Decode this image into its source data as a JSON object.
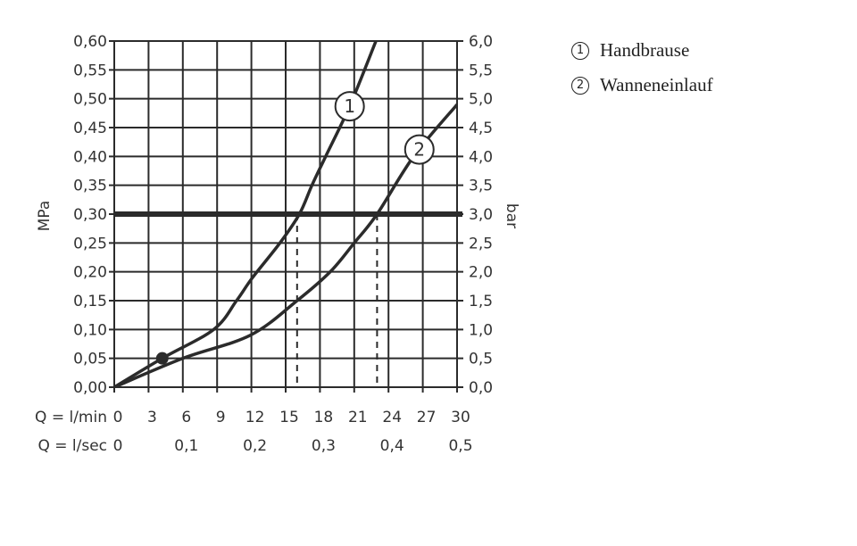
{
  "chart_data": {
    "type": "line",
    "xlabel_primary": "Q = l/min",
    "xlabel_secondary": "Q = l/sec",
    "ylabel_left": "MPa",
    "ylabel_right": "bar",
    "xlim": [
      0,
      30
    ],
    "ylim": [
      0,
      0.6
    ],
    "grid": true,
    "x_ticks": [
      "0",
      "3",
      "6",
      "9",
      "12",
      "15",
      "18",
      "21",
      "24",
      "27",
      "30"
    ],
    "x_ticks_values": [
      0,
      3,
      6,
      9,
      12,
      15,
      18,
      21,
      24,
      27,
      30
    ],
    "x2_ticks": [
      "0",
      "0,1",
      "0,2",
      "0,3",
      "0,4",
      "0,5"
    ],
    "x2_ticks_at_lmin": [
      0,
      6,
      12,
      18,
      24,
      30
    ],
    "y_left_ticks": [
      "0,00",
      "0,05",
      "0,10",
      "0,15",
      "0,20",
      "0,25",
      "0,30",
      "0,35",
      "0,40",
      "0,45",
      "0,50",
      "0,55",
      "0,60"
    ],
    "y_right_ticks": [
      "0,0",
      "0,5",
      "1,0",
      "1,5",
      "2,0",
      "2,5",
      "3,0",
      "3,5",
      "4,0",
      "4,5",
      "5,0",
      "5,5",
      "6,0"
    ],
    "reference_line_mpa": 0.3,
    "marker_point": {
      "x": 4.2,
      "y": 0.05
    },
    "series": [
      {
        "name": "1",
        "x": [
          0,
          4.2,
          8.7,
          10.7,
          12.1,
          14.5,
          16.2,
          17.3,
          18.5,
          20.6,
          22.9
        ],
        "y": [
          0,
          0.05,
          0.1,
          0.15,
          0.19,
          0.25,
          0.3,
          0.35,
          0.4,
          0.487,
          0.6
        ],
        "drop_line_x": 16.0,
        "label_at": {
          "x": 20.6,
          "y": 0.487
        }
      },
      {
        "name": "2",
        "x": [
          0,
          6.0,
          11.9,
          16.0,
          18.9,
          21.0,
          23.0,
          26.2,
          30
        ],
        "y": [
          0,
          0.05,
          0.09,
          0.15,
          0.2,
          0.25,
          0.3,
          0.4,
          0.49
        ],
        "drop_line_x": 23.0,
        "label_at": {
          "x": 26.7,
          "y": 0.412
        }
      }
    ]
  },
  "legend": [
    {
      "num": "1",
      "label": "Handbrause"
    },
    {
      "num": "2",
      "label": "Wanneneinlauf"
    }
  ]
}
